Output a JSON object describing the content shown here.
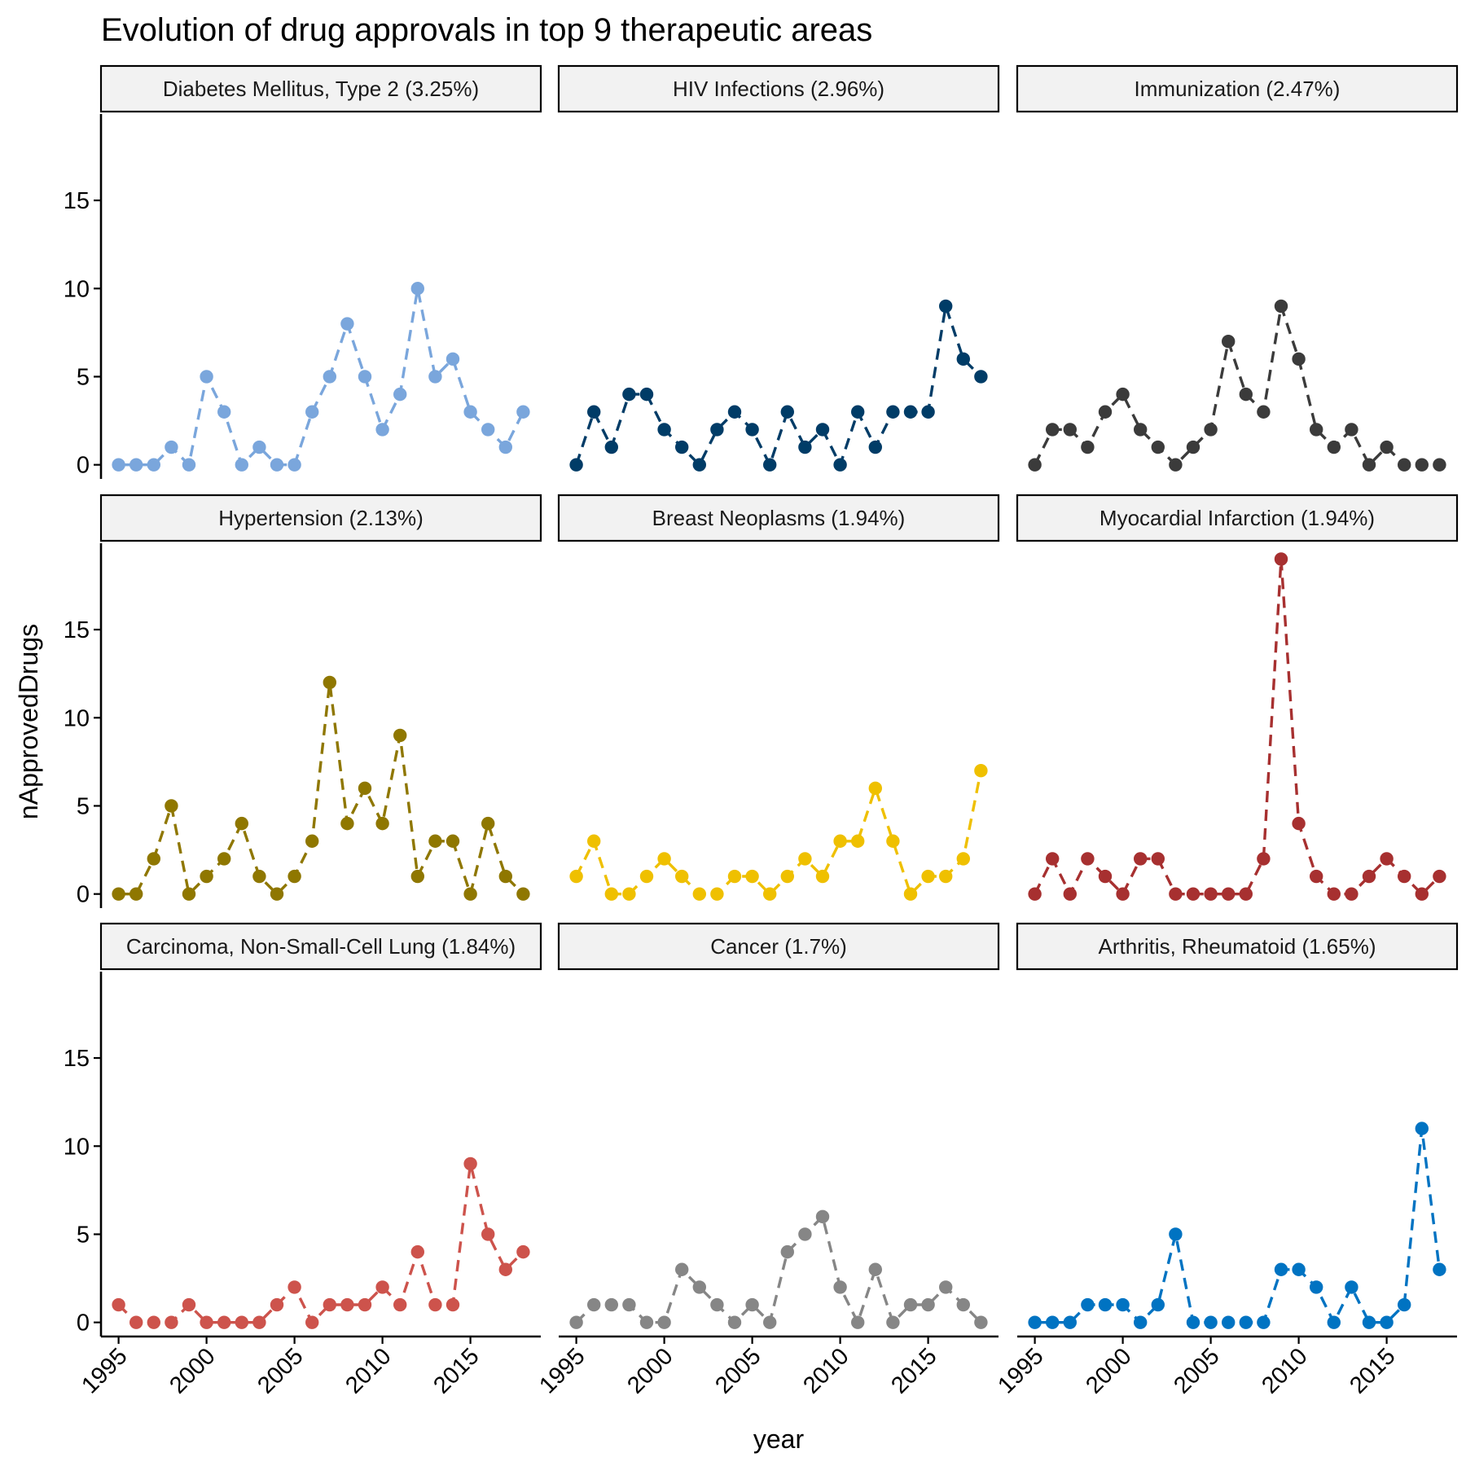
{
  "chart_data": {
    "type": "line",
    "title": "Evolution of drug approvals in top 9 therapeutic areas",
    "xlabel": "year",
    "ylabel": "nApprovedDrugs",
    "x": [
      1995,
      1996,
      1997,
      1998,
      1999,
      2000,
      2001,
      2002,
      2003,
      2004,
      2005,
      2006,
      2007,
      2008,
      2009,
      2010,
      2011,
      2012,
      2013,
      2014,
      2015,
      2016,
      2017,
      2018
    ],
    "xlim": [
      1994.0,
      2019.0
    ],
    "ylim": [
      -0.8,
      19.9
    ],
    "x_ticks": [
      "1995",
      "2000",
      "2005",
      "2010",
      "2015"
    ],
    "y_ticks": [
      "0",
      "5",
      "10",
      "15"
    ],
    "grid": false,
    "legend": "none",
    "facets": [
      {
        "name": "Diabetes Mellitus, Type 2 (3.25%)",
        "color": "#7AA6DC",
        "values": [
          0,
          0,
          0,
          1,
          0,
          5,
          3,
          0,
          1,
          0,
          0,
          3,
          5,
          8,
          5,
          2,
          4,
          10,
          5,
          6,
          3,
          2,
          1,
          3
        ]
      },
      {
        "name": "HIV Infections (2.96%)",
        "color": "#003C67",
        "values": [
          0,
          3,
          1,
          4,
          4,
          2,
          1,
          0,
          2,
          3,
          2,
          0,
          3,
          1,
          2,
          0,
          3,
          1,
          3,
          3,
          3,
          9,
          6,
          5
        ]
      },
      {
        "name": "Immunization (2.47%)",
        "color": "#3B3B3B",
        "values": [
          0,
          2,
          2,
          1,
          3,
          4,
          2,
          1,
          0,
          1,
          2,
          7,
          4,
          3,
          9,
          6,
          2,
          1,
          2,
          0,
          1,
          0,
          0,
          0
        ]
      },
      {
        "name": "Hypertension (2.13%)",
        "color": "#8F7700",
        "values": [
          0,
          0,
          2,
          5,
          0,
          1,
          2,
          4,
          1,
          0,
          1,
          3,
          12,
          4,
          6,
          4,
          9,
          1,
          3,
          3,
          0,
          4,
          1,
          0
        ]
      },
      {
        "name": "Breast Neoplasms (1.94%)",
        "color": "#EFC000",
        "values": [
          1,
          3,
          0,
          0,
          1,
          2,
          1,
          0,
          0,
          1,
          1,
          0,
          1,
          2,
          1,
          3,
          3,
          6,
          3,
          0,
          1,
          1,
          2,
          7
        ]
      },
      {
        "name": "Myocardial Infarction (1.94%)",
        "color": "#A73030",
        "values": [
          0,
          2,
          0,
          2,
          1,
          0,
          2,
          2,
          0,
          0,
          0,
          0,
          0,
          2,
          19,
          4,
          1,
          0,
          0,
          1,
          2,
          1,
          0,
          1
        ]
      },
      {
        "name": "Carcinoma, Non-Small-Cell Lung (1.84%)",
        "color": "#CD534C",
        "values": [
          1,
          0,
          0,
          0,
          1,
          0,
          0,
          0,
          0,
          1,
          2,
          0,
          1,
          1,
          1,
          2,
          1,
          4,
          1,
          1,
          9,
          5,
          3,
          4
        ]
      },
      {
        "name": "Cancer (1.7%)",
        "color": "#868686",
        "values": [
          0,
          1,
          1,
          1,
          0,
          0,
          3,
          2,
          1,
          0,
          1,
          0,
          4,
          5,
          6,
          2,
          0,
          3,
          0,
          1,
          1,
          2,
          1,
          0
        ]
      },
      {
        "name": "Arthritis, Rheumatoid (1.65%)",
        "color": "#0073C2",
        "values": [
          0,
          0,
          0,
          1,
          1,
          1,
          0,
          1,
          5,
          0,
          0,
          0,
          0,
          0,
          3,
          3,
          2,
          0,
          2,
          0,
          0,
          1,
          11,
          3
        ]
      }
    ]
  }
}
